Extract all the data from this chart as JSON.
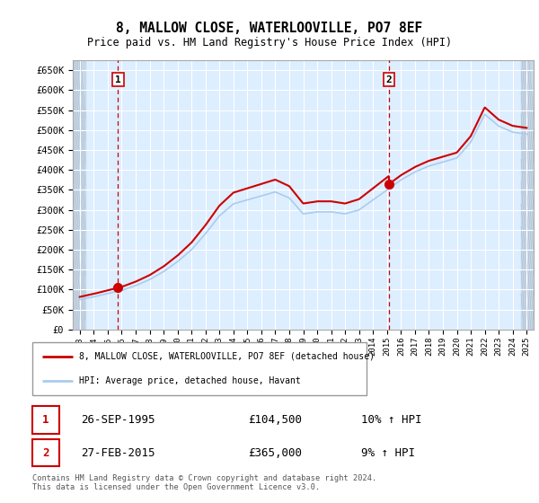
{
  "title": "8, MALLOW CLOSE, WATERLOOVILLE, PO7 8EF",
  "subtitle": "Price paid vs. HM Land Registry's House Price Index (HPI)",
  "ylabel_ticks": [
    "£0",
    "£50K",
    "£100K",
    "£150K",
    "£200K",
    "£250K",
    "£300K",
    "£350K",
    "£400K",
    "£450K",
    "£500K",
    "£550K",
    "£600K",
    "£650K"
  ],
  "ylim": [
    0,
    675000
  ],
  "yticks": [
    0,
    50000,
    100000,
    150000,
    200000,
    250000,
    300000,
    350000,
    400000,
    450000,
    500000,
    550000,
    600000,
    650000
  ],
  "sale1_date": 1995.74,
  "sale1_price": 104500,
  "sale2_date": 2015.15,
  "sale2_price": 365000,
  "legend_line1": "8, MALLOW CLOSE, WATERLOOVILLE, PO7 8EF (detached house)",
  "legend_line2": "HPI: Average price, detached house, Havant",
  "table_row1": [
    "1",
    "26-SEP-1995",
    "£104,500",
    "10% ↑ HPI"
  ],
  "table_row2": [
    "2",
    "27-FEB-2015",
    "£365,000",
    "9% ↑ HPI"
  ],
  "footer": "Contains HM Land Registry data © Crown copyright and database right 2024.\nThis data is licensed under the Open Government Licence v3.0.",
  "plot_bg_color": "#ddeeff",
  "grid_color": "#ffffff",
  "red_line_color": "#cc0000",
  "blue_line_color": "#aaccee",
  "marker_color": "#cc0000",
  "vline_color": "#cc0000",
  "box_color": "#cc0000",
  "hpi_years": [
    1993,
    1994,
    1995,
    1996,
    1997,
    1998,
    1999,
    2000,
    2001,
    2002,
    2003,
    2004,
    2005,
    2006,
    2007,
    2008,
    2009,
    2010,
    2011,
    2012,
    2013,
    2014,
    2015,
    2016,
    2017,
    2018,
    2019,
    2020,
    2021,
    2022,
    2023,
    2024,
    2025
  ],
  "hpi_vals": [
    75000,
    82000,
    90000,
    98000,
    110000,
    125000,
    145000,
    170000,
    200000,
    240000,
    285000,
    315000,
    325000,
    335000,
    345000,
    330000,
    290000,
    295000,
    295000,
    290000,
    300000,
    325000,
    350000,
    375000,
    395000,
    410000,
    420000,
    430000,
    470000,
    540000,
    510000,
    495000,
    490000
  ]
}
